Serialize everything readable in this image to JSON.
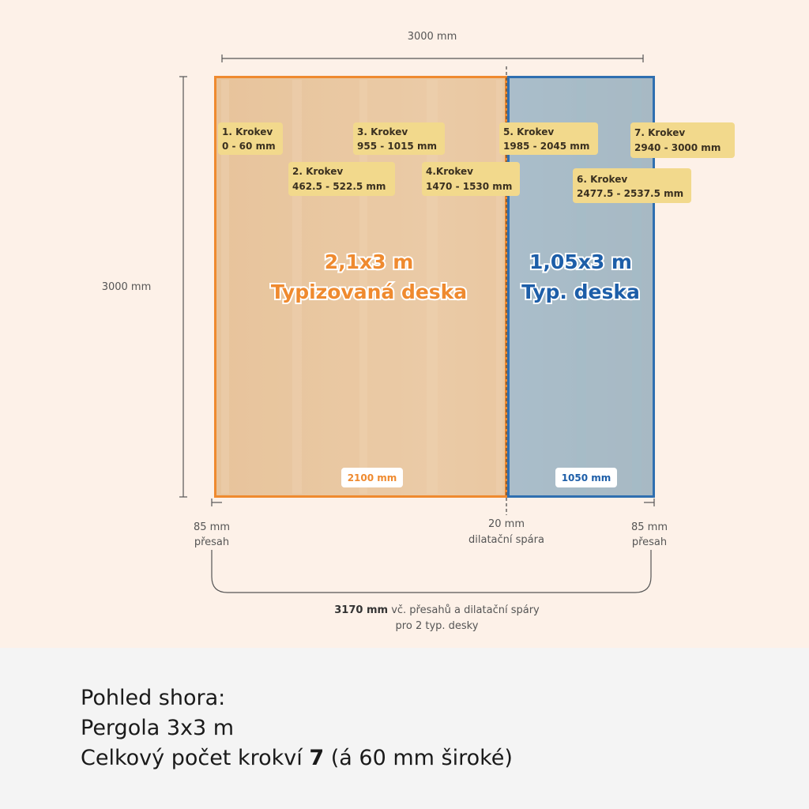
{
  "dimensions": {
    "top_width": "3000 mm",
    "left_height": "3000 mm",
    "left_overhang_value": "85 mm",
    "left_overhang_label": "přesah",
    "gap_value": "20 mm",
    "gap_label": "dilatační spára",
    "right_overhang_value": "85 mm",
    "right_overhang_label": "přesah",
    "total_bold": "3170 mm",
    "total_rest": "vč. přesahů a dilatační spáry",
    "total_line2": "pro 2 typ. desky"
  },
  "boards": {
    "left": {
      "size": "2,1x3 m",
      "name": "Typizovaná deska",
      "width_label": "2100 mm",
      "color": "#ef8a2f"
    },
    "right": {
      "size": "1,05x3 m",
      "name": "Typ. deska",
      "width_label": "1050 mm",
      "color": "#2f6fb0"
    }
  },
  "rafters": [
    {
      "title": "1. Krokev",
      "range": "0 - 60 mm"
    },
    {
      "title": "2. Krokev",
      "range": "462.5 - 522.5 mm"
    },
    {
      "title": "3. Krokev",
      "range": "955 - 1015  mm"
    },
    {
      "title": "4.Krokev",
      "range": "1470 - 1530 mm"
    },
    {
      "title": "5. Krokev",
      "range": "1985 - 2045 mm"
    },
    {
      "title": "6. Krokev",
      "range": "2477.5 - 2537.5 mm"
    },
    {
      "title": "7. Krokev",
      "range": "2940 - 3000 mm"
    }
  ],
  "summary": {
    "line1": "Pohled shora:",
    "line2": "Pergola 3x3 m",
    "line3_prefix": "Celkový počet krokví ",
    "line3_count": "7",
    "line3_suffix": " (á 60 mm široké)"
  }
}
